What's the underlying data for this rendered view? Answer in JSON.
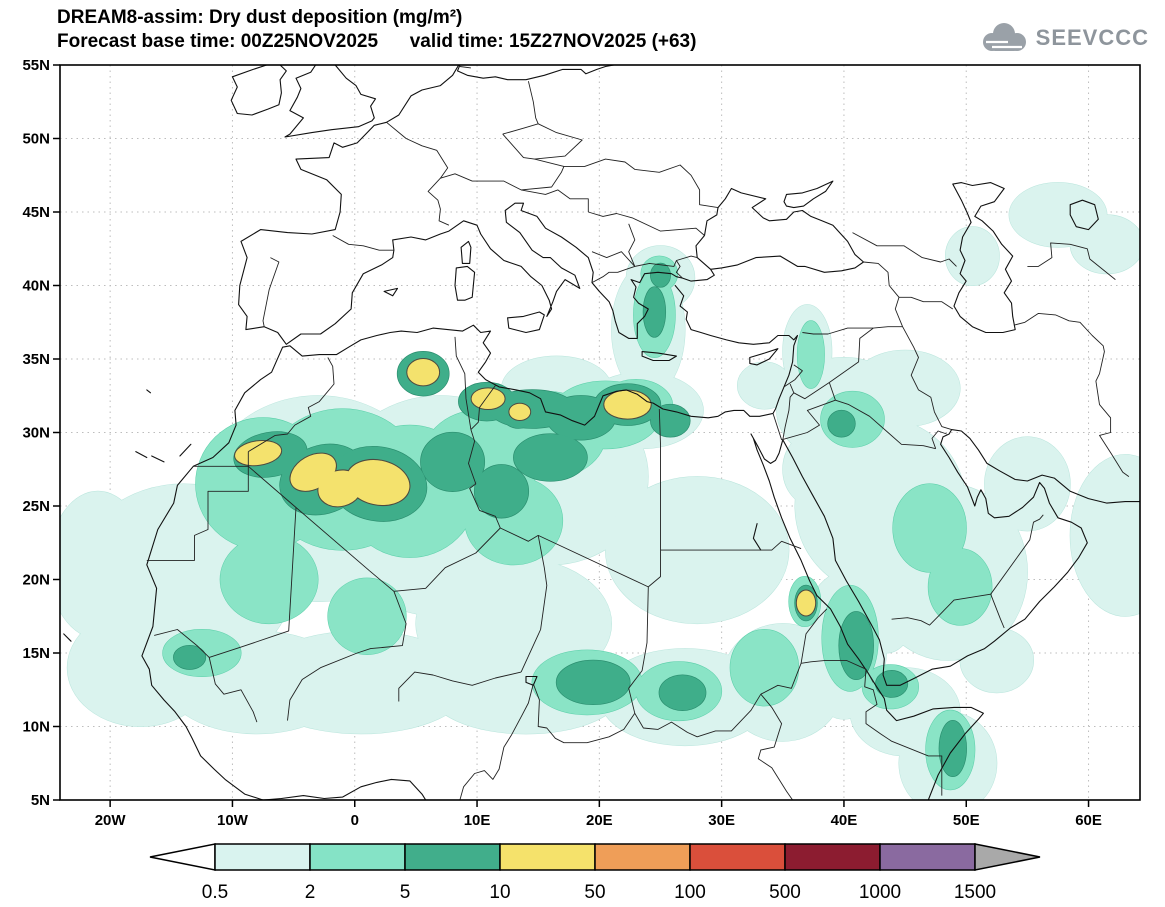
{
  "header": {
    "title_line1": "DREAM8-assim: Dry dust deposition (mg/m²)",
    "title_line2": "Forecast base time: 00Z25NOV2025      valid time: 15Z27NOV2025 (+63)",
    "logo_text": "SEEVCCC"
  },
  "map": {
    "lat_tick_labels": [
      "55N",
      "50N",
      "45N",
      "40N",
      "35N",
      "30N",
      "25N",
      "20N",
      "15N",
      "10N",
      "5N"
    ],
    "lat_tick_values": [
      55,
      50,
      45,
      40,
      35,
      30,
      25,
      20,
      15,
      10,
      5
    ],
    "lon_tick_labels": [
      "20W",
      "10W",
      "0",
      "10E",
      "20E",
      "30E",
      "40E",
      "50E",
      "60E"
    ],
    "lon_tick_values": [
      -20,
      -10,
      0,
      10,
      20,
      30,
      40,
      50,
      60
    ]
  },
  "colorbar": {
    "labels": [
      "0.5",
      "2",
      "5",
      "10",
      "50",
      "100",
      "500",
      "1000",
      "1500"
    ],
    "segment_colors": [
      "#d9f3ef",
      "#85e3c6",
      "#41ae8b",
      "#f5e26b",
      "#ef9e58",
      "#da4f3b",
      "#8c1c30",
      "#8a6aa0"
    ],
    "under_color": "#ffffff",
    "over_color": "#a9a9a9"
  },
  "chart_data": {
    "type": "heatmap",
    "subtype": "filled-contour-map",
    "title": "DREAM8-assim: Dry dust deposition (mg/m²)",
    "model": "DREAM8-assim",
    "variable": "Dry dust deposition",
    "units": "mg/m²",
    "forecast_base_time": "00Z25NOV2025",
    "valid_time": "15Z27NOV2025",
    "lead": "+63",
    "lon_range": [
      -24.1,
      64.2
    ],
    "lat_range": [
      5,
      55
    ],
    "contour_levels": [
      0.5,
      2,
      5,
      10,
      50,
      100,
      500,
      1000,
      1500
    ],
    "legend_position": "bottom",
    "grid": "dotted",
    "region": "North Africa / Mediterranean / Middle East",
    "dust_regions": [
      {
        "level": 0.5,
        "color": "#daf3ee",
        "outline": "#b9e5dc",
        "outline_w": 1,
        "shapes": [
          [
            -14,
            20,
            9,
            6.5,
            0
          ],
          [
            -17.5,
            14,
            6,
            4,
            0
          ],
          [
            -8,
            13,
            7.5,
            3.5,
            0
          ],
          [
            -21,
            21,
            4,
            5,
            0
          ],
          [
            -3,
            25.5,
            9.5,
            7,
            0
          ],
          [
            7,
            25,
            9.5,
            7.5,
            0
          ],
          [
            16,
            27,
            8,
            6,
            0
          ],
          [
            16.5,
            33,
            4.5,
            2.2,
            0
          ],
          [
            13,
            17,
            8,
            4.5,
            0
          ],
          [
            0.5,
            13,
            9,
            3.5,
            0
          ],
          [
            14,
            12.5,
            8,
            3,
            0
          ],
          [
            27,
            12,
            7,
            3.3,
            0
          ],
          [
            35,
            13,
            5,
            4,
            0
          ],
          [
            28,
            22,
            7.5,
            5,
            0
          ],
          [
            23.5,
            31.5,
            5,
            2.6,
            0
          ],
          [
            24,
            37,
            3,
            4.5,
            0
          ],
          [
            25,
            40.5,
            2.8,
            2.2,
            0
          ],
          [
            37,
            35.5,
            2,
            3.2,
            0
          ],
          [
            33.5,
            33.2,
            2.2,
            1.6,
            0
          ],
          [
            40,
            31.5,
            5.5,
            3.6,
            0
          ],
          [
            45,
            33,
            4.5,
            2.6,
            0
          ],
          [
            43,
            25,
            7,
            6,
            0
          ],
          [
            48.5,
            20.5,
            6.5,
            6,
            0
          ],
          [
            40,
            15.5,
            3.5,
            5,
            0
          ],
          [
            43.5,
            18.5,
            2.5,
            3.5,
            0
          ],
          [
            45,
            11,
            4.5,
            3,
            0
          ],
          [
            48.5,
            7.5,
            4,
            3.5,
            0
          ],
          [
            52.5,
            14.5,
            3,
            2.2,
            0
          ],
          [
            63,
            23,
            4.5,
            5.5,
            0
          ],
          [
            55,
            26.5,
            3.5,
            3.2,
            0
          ],
          [
            57.5,
            44.8,
            4,
            2.2,
            0
          ],
          [
            61.5,
            42.8,
            3,
            2,
            0
          ],
          [
            50.5,
            42,
            2.2,
            2,
            0
          ],
          [
            37.5,
            27.5,
            2.5,
            2.5,
            0
          ]
        ]
      },
      {
        "level": 2,
        "color": "#8ae4c6",
        "outline": "#5bcfa9",
        "outline_w": 1,
        "shapes": [
          [
            -7.5,
            26.5,
            5.5,
            4.5,
            0
          ],
          [
            -1,
            26.8,
            6.5,
            4.8,
            0
          ],
          [
            4.5,
            26,
            5.5,
            4.5,
            0
          ],
          [
            10,
            27.5,
            4.8,
            4,
            0
          ],
          [
            15.5,
            29.8,
            5,
            3,
            0
          ],
          [
            20.5,
            31.2,
            4.5,
            2.3,
            0
          ],
          [
            23,
            31.8,
            3,
            1.8,
            0
          ],
          [
            13,
            24,
            4,
            3,
            0
          ],
          [
            -7,
            20,
            4,
            3,
            0
          ],
          [
            -12.5,
            15,
            3.2,
            1.6,
            0
          ],
          [
            1,
            17.5,
            3.2,
            2.6,
            0
          ],
          [
            19,
            13,
            4.5,
            2.2,
            0
          ],
          [
            26.5,
            12.4,
            3.5,
            2,
            0
          ],
          [
            33.5,
            14,
            2.8,
            2.6,
            0
          ],
          [
            24.5,
            38,
            1.7,
            2.9,
            0
          ],
          [
            24.9,
            40.8,
            1.5,
            1.2,
            0
          ],
          [
            40.5,
            16,
            2.3,
            3.6,
            0
          ],
          [
            43.8,
            12.7,
            2.3,
            1.5,
            0
          ],
          [
            48.7,
            8.4,
            2,
            2.7,
            0
          ],
          [
            47,
            23.5,
            3,
            3,
            0
          ],
          [
            49.5,
            19.5,
            2.6,
            2.6,
            0
          ],
          [
            40.7,
            30.9,
            2.6,
            1.9,
            0
          ],
          [
            37.3,
            35.3,
            1.1,
            2.3,
            0
          ],
          [
            36.8,
            18.5,
            1.3,
            1.7,
            0
          ]
        ]
      },
      {
        "level": 5,
        "color": "#3fae8a",
        "outline": "#2b8e6f",
        "outline_w": 1.3,
        "shapes": [
          [
            -6.9,
            28.5,
            3,
            1.5,
            -10
          ],
          [
            -2.6,
            26.8,
            3.6,
            2.3,
            -20
          ],
          [
            1.9,
            26.5,
            4,
            2.5,
            10
          ],
          [
            5.6,
            34,
            2.1,
            1.5,
            0
          ],
          [
            10.8,
            32.1,
            2.3,
            1.3,
            0
          ],
          [
            13.4,
            31.3,
            1.4,
            1,
            0
          ],
          [
            14.5,
            31.6,
            3.5,
            1.3,
            0
          ],
          [
            18.5,
            31,
            2.8,
            1.5,
            0
          ],
          [
            22.3,
            31.9,
            2.7,
            1.4,
            0
          ],
          [
            25.8,
            30.8,
            1.6,
            1.1,
            0
          ],
          [
            8,
            28,
            2.6,
            2,
            0
          ],
          [
            16,
            28.3,
            3,
            1.6,
            0
          ],
          [
            12,
            26,
            2.2,
            1.8,
            0
          ],
          [
            24.5,
            38.2,
            0.9,
            1.7,
            0
          ],
          [
            25,
            40.7,
            0.8,
            0.8,
            0
          ],
          [
            19.5,
            13,
            3,
            1.5,
            0
          ],
          [
            26.8,
            12.3,
            1.9,
            1.2,
            0
          ],
          [
            41,
            15.5,
            1.4,
            2.3,
            0
          ],
          [
            43.9,
            12.9,
            1.3,
            0.9,
            0
          ],
          [
            48.9,
            8.5,
            1.1,
            1.9,
            0
          ],
          [
            36.9,
            18.4,
            0.9,
            1.2,
            0
          ],
          [
            -13.5,
            14.7,
            1.3,
            0.8,
            0
          ],
          [
            39.8,
            30.6,
            1.1,
            0.9,
            0
          ]
        ]
      },
      {
        "level": 10,
        "color": "#f4e26d",
        "outline": "#4d4a40",
        "outline_w": 2,
        "shapes": [
          [
            -7.9,
            28.6,
            1.9,
            0.8,
            -8
          ],
          [
            -3.4,
            27.3,
            2,
            1.1,
            -30
          ],
          [
            -1.2,
            26.2,
            1.8,
            1.2,
            -15
          ],
          [
            1.9,
            26.6,
            2.6,
            1.5,
            12
          ],
          [
            5.6,
            34.1,
            1.3,
            0.9,
            0
          ],
          [
            10.9,
            32.3,
            1.35,
            0.7,
            0
          ],
          [
            13.5,
            31.4,
            0.85,
            0.55,
            0
          ],
          [
            22.3,
            31.9,
            1.9,
            0.95,
            0
          ],
          [
            36.9,
            18.4,
            0.75,
            0.85,
            0
          ]
        ]
      }
    ]
  }
}
